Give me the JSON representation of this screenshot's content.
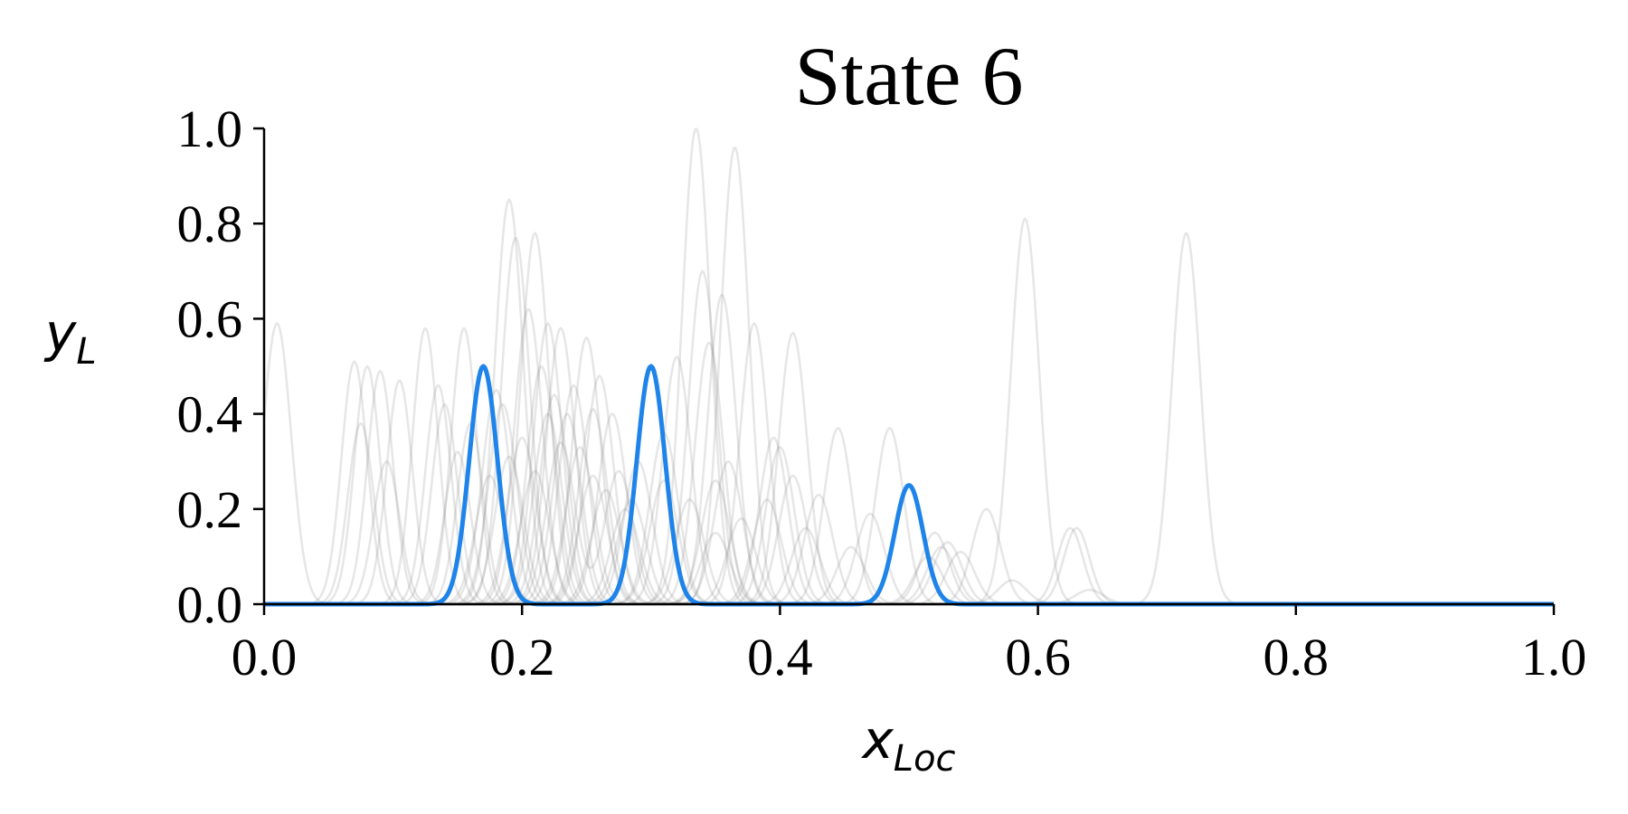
{
  "chart_data": {
    "type": "line",
    "title": "State 6",
    "xlabel": {
      "base": "x",
      "sub": "Loc"
    },
    "ylabel": {
      "base": "y",
      "sub": "L"
    },
    "xlim": [
      0,
      1
    ],
    "ylim": [
      0,
      1
    ],
    "x_ticks": [
      "0.0",
      "0.2",
      "0.4",
      "0.6",
      "0.8",
      "1.0"
    ],
    "y_ticks": [
      "0.0",
      "0.2",
      "0.4",
      "0.6",
      "0.8",
      "1.0"
    ],
    "grid": false,
    "colors": {
      "highlight": "#1f84ea",
      "background_curves": "#808080"
    },
    "highlight_series": {
      "peaks": [
        {
          "center": 0.17,
          "amplitude": 0.5,
          "width": 0.011
        },
        {
          "center": 0.3,
          "amplitude": 0.5,
          "width": 0.011
        },
        {
          "center": 0.5,
          "amplitude": 0.25,
          "width": 0.011
        }
      ]
    },
    "background_series": [
      {
        "peaks": [
          {
            "center": 0.01,
            "amplitude": 0.59,
            "width": 0.011
          }
        ]
      },
      {
        "peaks": [
          {
            "center": 0.07,
            "amplitude": 0.51,
            "width": 0.01
          },
          {
            "center": 0.19,
            "amplitude": 0.85,
            "width": 0.011
          }
        ]
      },
      {
        "peaks": [
          {
            "center": 0.08,
            "amplitude": 0.5,
            "width": 0.01
          },
          {
            "center": 0.21,
            "amplitude": 0.78,
            "width": 0.011
          }
        ]
      },
      {
        "peaks": [
          {
            "center": 0.09,
            "amplitude": 0.49,
            "width": 0.01
          },
          {
            "center": 0.335,
            "amplitude": 1.0,
            "width": 0.011
          }
        ]
      },
      {
        "peaks": [
          {
            "center": 0.105,
            "amplitude": 0.47,
            "width": 0.01
          },
          {
            "center": 0.365,
            "amplitude": 0.96,
            "width": 0.011
          }
        ]
      },
      {
        "peaks": [
          {
            "center": 0.125,
            "amplitude": 0.58,
            "width": 0.01
          },
          {
            "center": 0.59,
            "amplitude": 0.81,
            "width": 0.011
          }
        ]
      },
      {
        "peaks": [
          {
            "center": 0.155,
            "amplitude": 0.58,
            "width": 0.01
          },
          {
            "center": 0.715,
            "amplitude": 0.78,
            "width": 0.011
          }
        ]
      },
      {
        "peaks": [
          {
            "center": 0.195,
            "amplitude": 0.77,
            "width": 0.011
          },
          {
            "center": 0.34,
            "amplitude": 0.7,
            "width": 0.011
          }
        ]
      },
      {
        "peaks": [
          {
            "center": 0.205,
            "amplitude": 0.62,
            "width": 0.011
          },
          {
            "center": 0.355,
            "amplitude": 0.65,
            "width": 0.011
          }
        ]
      },
      {
        "peaks": [
          {
            "center": 0.22,
            "amplitude": 0.59,
            "width": 0.011
          },
          {
            "center": 0.41,
            "amplitude": 0.57,
            "width": 0.011
          }
        ]
      },
      {
        "peaks": [
          {
            "center": 0.23,
            "amplitude": 0.58,
            "width": 0.011
          },
          {
            "center": 0.38,
            "amplitude": 0.59,
            "width": 0.011
          }
        ]
      },
      {
        "peaks": [
          {
            "center": 0.25,
            "amplitude": 0.56,
            "width": 0.011
          },
          {
            "center": 0.445,
            "amplitude": 0.37,
            "width": 0.011
          }
        ]
      },
      {
        "peaks": [
          {
            "center": 0.26,
            "amplitude": 0.48,
            "width": 0.011
          },
          {
            "center": 0.485,
            "amplitude": 0.37,
            "width": 0.011
          }
        ]
      },
      {
        "peaks": [
          {
            "center": 0.32,
            "amplitude": 0.52,
            "width": 0.011
          },
          {
            "center": 0.56,
            "amplitude": 0.2,
            "width": 0.011
          }
        ]
      },
      {
        "peaks": [
          {
            "center": 0.345,
            "amplitude": 0.55,
            "width": 0.011
          },
          {
            "center": 0.625,
            "amplitude": 0.16,
            "width": 0.01
          }
        ]
      },
      {
        "peaks": [
          {
            "center": 0.14,
            "amplitude": 0.42,
            "width": 0.01
          },
          {
            "center": 0.63,
            "amplitude": 0.16,
            "width": 0.01
          }
        ]
      },
      {
        "peaks": [
          {
            "center": 0.18,
            "amplitude": 0.45,
            "width": 0.011
          },
          {
            "center": 0.47,
            "amplitude": 0.19,
            "width": 0.011
          }
        ]
      },
      {
        "peaks": [
          {
            "center": 0.215,
            "amplitude": 0.5,
            "width": 0.011
          },
          {
            "center": 0.52,
            "amplitude": 0.15,
            "width": 0.011
          }
        ]
      },
      {
        "peaks": [
          {
            "center": 0.24,
            "amplitude": 0.46,
            "width": 0.011
          },
          {
            "center": 0.53,
            "amplitude": 0.13,
            "width": 0.011
          }
        ]
      },
      {
        "peaks": [
          {
            "center": 0.27,
            "amplitude": 0.4,
            "width": 0.011
          },
          {
            "center": 0.54,
            "amplitude": 0.11,
            "width": 0.011
          }
        ]
      },
      {
        "peaks": [
          {
            "center": 0.29,
            "amplitude": 0.3,
            "width": 0.011
          },
          {
            "center": 0.43,
            "amplitude": 0.23,
            "width": 0.011
          }
        ]
      },
      {
        "peaks": [
          {
            "center": 0.31,
            "amplitude": 0.26,
            "width": 0.011
          },
          {
            "center": 0.4,
            "amplitude": 0.33,
            "width": 0.011
          }
        ]
      },
      {
        "peaks": [
          {
            "center": 0.225,
            "amplitude": 0.44,
            "width": 0.011
          },
          {
            "center": 0.395,
            "amplitude": 0.35,
            "width": 0.011
          }
        ]
      },
      {
        "peaks": [
          {
            "center": 0.235,
            "amplitude": 0.4,
            "width": 0.011
          },
          {
            "center": 0.36,
            "amplitude": 0.3,
            "width": 0.011
          }
        ]
      },
      {
        "peaks": [
          {
            "center": 0.185,
            "amplitude": 0.42,
            "width": 0.011
          },
          {
            "center": 0.33,
            "amplitude": 0.22,
            "width": 0.011
          }
        ]
      },
      {
        "peaks": [
          {
            "center": 0.2,
            "amplitude": 0.35,
            "width": 0.011
          },
          {
            "center": 0.42,
            "amplitude": 0.16,
            "width": 0.011
          }
        ]
      },
      {
        "peaks": [
          {
            "center": 0.245,
            "amplitude": 0.33,
            "width": 0.011
          },
          {
            "center": 0.515,
            "amplitude": 0.1,
            "width": 0.011
          }
        ]
      },
      {
        "peaks": [
          {
            "center": 0.15,
            "amplitude": 0.32,
            "width": 0.01
          },
          {
            "center": 0.28,
            "amplitude": 0.2,
            "width": 0.011
          }
        ]
      },
      {
        "peaks": [
          {
            "center": 0.16,
            "amplitude": 0.38,
            "width": 0.01
          },
          {
            "center": 0.37,
            "amplitude": 0.18,
            "width": 0.011
          }
        ]
      },
      {
        "peaks": [
          {
            "center": 0.095,
            "amplitude": 0.3,
            "width": 0.01
          },
          {
            "center": 0.255,
            "amplitude": 0.27,
            "width": 0.011
          }
        ]
      },
      {
        "peaks": [
          {
            "center": 0.075,
            "amplitude": 0.38,
            "width": 0.01
          },
          {
            "center": 0.35,
            "amplitude": 0.15,
            "width": 0.011
          }
        ]
      },
      {
        "peaks": [
          {
            "center": 0.135,
            "amplitude": 0.46,
            "width": 0.01
          },
          {
            "center": 0.455,
            "amplitude": 0.12,
            "width": 0.011
          }
        ]
      },
      {
        "peaks": [
          {
            "center": 0.21,
            "amplitude": 0.28,
            "width": 0.011
          },
          {
            "center": 0.58,
            "amplitude": 0.05,
            "width": 0.011
          }
        ]
      },
      {
        "peaks": [
          {
            "center": 0.265,
            "amplitude": 0.24,
            "width": 0.011
          },
          {
            "center": 0.64,
            "amplitude": 0.03,
            "width": 0.011
          }
        ]
      },
      {
        "peaks": [
          {
            "center": 0.175,
            "amplitude": 0.27,
            "width": 0.011
          },
          {
            "center": 0.39,
            "amplitude": 0.22,
            "width": 0.011
          }
        ]
      },
      {
        "peaks": [
          {
            "center": 0.22,
            "amplitude": 0.4,
            "width": 0.011
          },
          {
            "center": 0.31,
            "amplitude": 0.36,
            "width": 0.011
          }
        ]
      },
      {
        "peaks": [
          {
            "center": 0.19,
            "amplitude": 0.31,
            "width": 0.011
          },
          {
            "center": 0.35,
            "amplitude": 0.26,
            "width": 0.011
          }
        ]
      },
      {
        "peaks": [
          {
            "center": 0.23,
            "amplitude": 0.34,
            "width": 0.011
          },
          {
            "center": 0.275,
            "amplitude": 0.28,
            "width": 0.011
          }
        ]
      },
      {
        "peaks": [
          {
            "center": 0.255,
            "amplitude": 0.41,
            "width": 0.011
          },
          {
            "center": 0.41,
            "amplitude": 0.27,
            "width": 0.011
          }
        ]
      },
      {
        "peaks": [
          {
            "center": 0.285,
            "amplitude": 0.22,
            "width": 0.011
          },
          {
            "center": 0.525,
            "amplitude": 0.12,
            "width": 0.011
          }
        ]
      }
    ]
  }
}
